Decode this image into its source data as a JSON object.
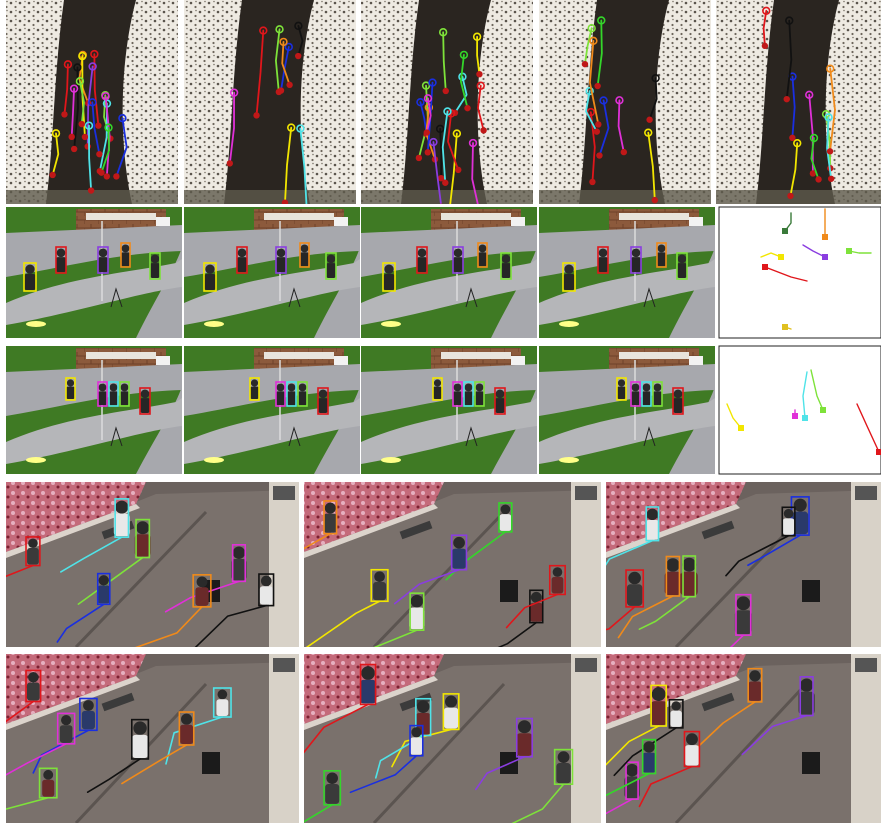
{
  "figure": {
    "description_free": true,
    "palette": {
      "yellow": "#f2e600",
      "red": "#e0161b",
      "green": "#7ee23a",
      "lime": "#34d62a",
      "cyan": "#4fe3e8",
      "blue": "#1a2fe0",
      "magenta": "#e030d8",
      "orange": "#f08a1a",
      "purple": "#8a3de0",
      "black": "#111111",
      "grass": "#3f7a24",
      "path_gray": "#a7a8ad",
      "street": "#6b625e",
      "sand": "#ece6dc",
      "dark_ground": "#2a2520"
    }
  }
}
